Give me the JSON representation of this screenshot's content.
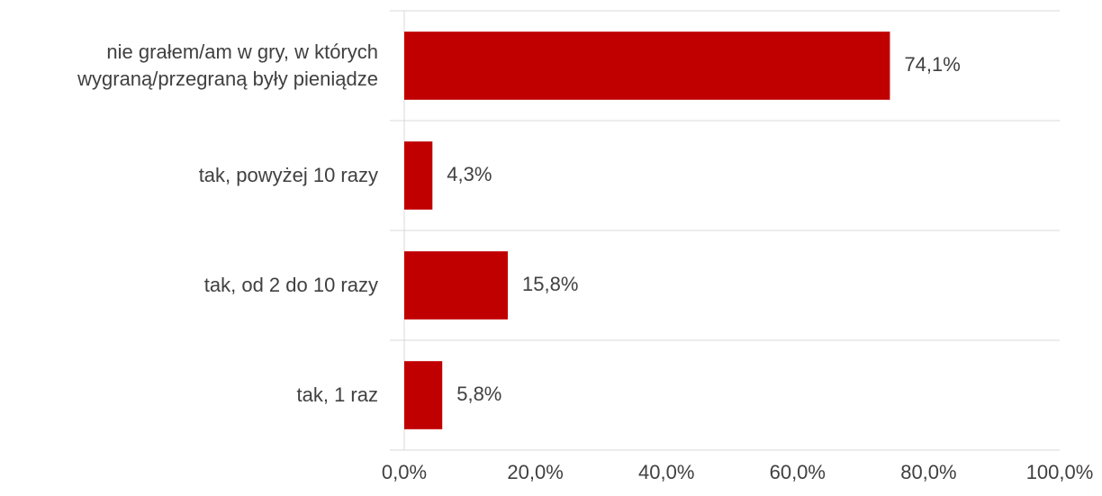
{
  "chart_data": {
    "type": "barh",
    "categories": [
      "nie grałem/am w gry, w których wygraną/przegraną były pieniądze",
      "tak, powyżej 10 razy",
      "tak, od 2 do 10 razy",
      "tak, 1 raz"
    ],
    "values": [
      74.1,
      4.3,
      15.8,
      5.8
    ],
    "value_labels": [
      "74,1%",
      "4,3%",
      "15,8%",
      "5,8%"
    ],
    "color": "#c00000",
    "xlim": [
      0,
      100
    ],
    "xticks": [
      {
        "value": 0,
        "label": "0,0%"
      },
      {
        "value": 20,
        "label": "20,0%"
      },
      {
        "value": 40,
        "label": "40,0%"
      },
      {
        "value": 60,
        "label": "60,0%"
      },
      {
        "value": 80,
        "label": "80,0%"
      },
      {
        "value": 100,
        "label": "100,0%"
      }
    ]
  }
}
